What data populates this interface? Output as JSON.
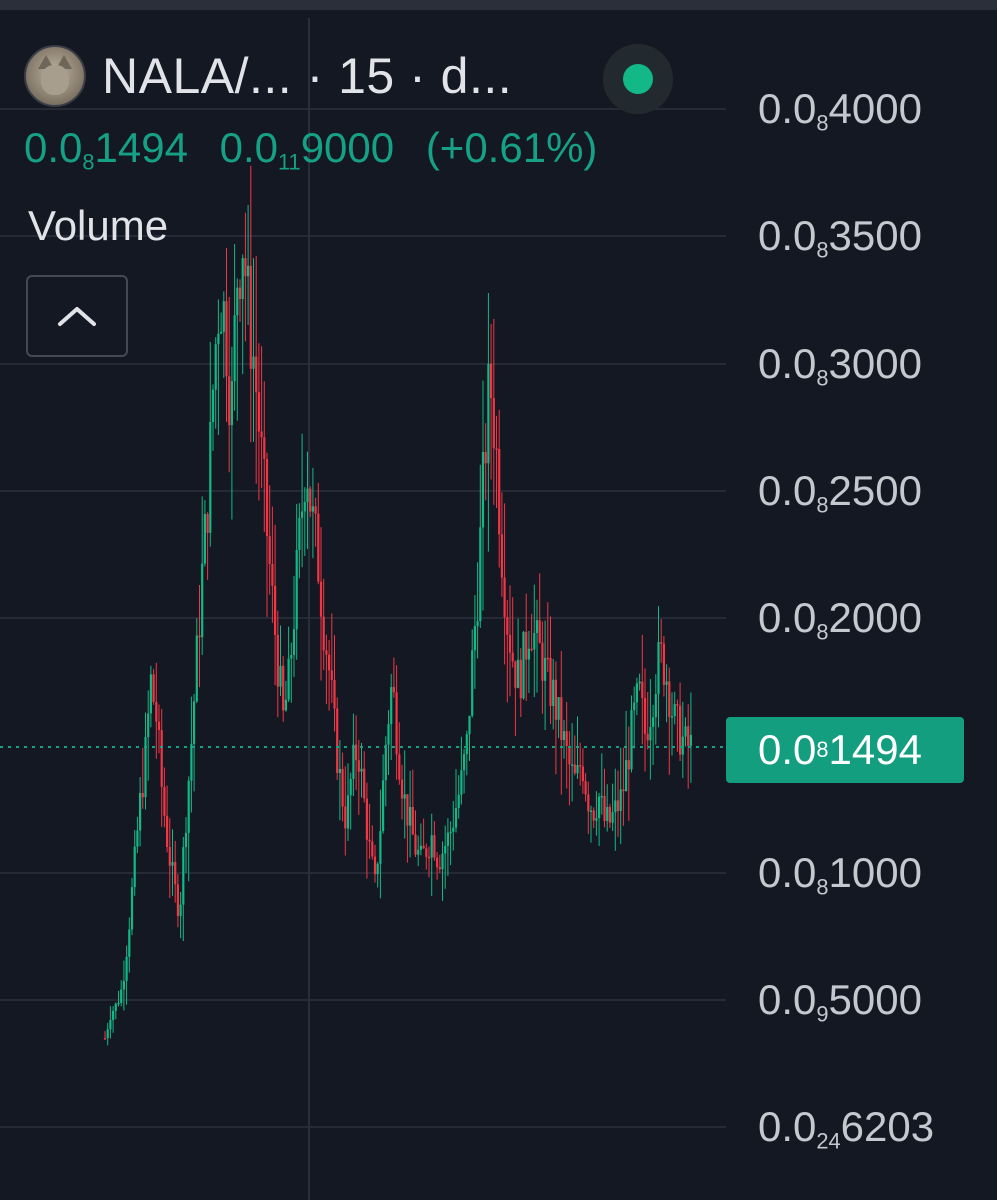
{
  "header": {
    "symbol": "NALA/... · 15 · d...",
    "live_status": "live",
    "price": {
      "base": "0.0",
      "zeros": "8",
      "digits": "1494"
    },
    "change": {
      "base": "0.0",
      "zeros": "11",
      "digits": "9000"
    },
    "change_pct": "(+0.61%)"
  },
  "indicators": {
    "volume_label": "Volume",
    "collapse_icon": "chevron-up-icon"
  },
  "colors": {
    "background": "#141822",
    "up": "#12b886",
    "down": "#f23645",
    "grid": "#262a36",
    "text": "#c5c8cf",
    "price_tag": "#129e7f"
  },
  "chart_data": {
    "type": "candlestick",
    "interval": "15",
    "last_price": 1.494e-09,
    "last_price_label": {
      "base": "0.0",
      "zeros": "8",
      "digits": "1494"
    },
    "y_axis": {
      "ticks": [
        {
          "value": 4e-09,
          "base": "0.0",
          "zeros": "8",
          "digits": "4000"
        },
        {
          "value": 3.5e-09,
          "base": "0.0",
          "zeros": "8",
          "digits": "3500"
        },
        {
          "value": 3e-09,
          "base": "0.0",
          "zeros": "8",
          "digits": "3000"
        },
        {
          "value": 2.5e-09,
          "base": "0.0",
          "zeros": "8",
          "digits": "2500"
        },
        {
          "value": 2e-09,
          "base": "0.0",
          "zeros": "8",
          "digits": "2000"
        },
        {
          "value": 1e-09,
          "base": "0.0",
          "zeros": "8",
          "digits": "1000"
        },
        {
          "value": 5e-10,
          "base": "0.0",
          "zeros": "9",
          "digits": "5000"
        },
        {
          "value": 6.203e-25,
          "base": "0.0",
          "zeros": "24",
          "digits": "6203"
        }
      ]
    },
    "path_prices_e9": [
      0.35,
      0.45,
      0.48,
      0.55,
      0.75,
      1.0,
      1.25,
      1.45,
      1.75,
      1.6,
      1.3,
      1.1,
      0.95,
      0.85,
      1.2,
      1.5,
      1.85,
      2.2,
      2.5,
      3.0,
      3.3,
      3.15,
      2.8,
      3.35,
      3.5,
      3.2,
      3.0,
      2.7,
      2.4,
      2.1,
      1.85,
      1.6,
      1.75,
      2.05,
      2.35,
      2.65,
      2.4,
      2.25,
      2.0,
      1.8,
      1.55,
      1.35,
      1.2,
      1.4,
      1.5,
      1.3,
      1.1,
      0.95,
      1.2,
      1.55,
      1.75,
      1.5,
      1.3,
      1.2,
      1.1,
      1.05,
      1.1,
      1.15,
      1.05,
      1.1,
      1.15,
      1.25,
      1.35,
      1.5,
      1.85,
      2.15,
      2.6,
      2.95,
      2.7,
      2.3,
      2.0,
      1.85,
      1.75,
      1.85,
      2.0,
      1.9,
      1.85,
      1.75,
      1.7,
      1.6,
      1.5,
      1.4,
      1.35,
      1.45,
      1.3,
      1.25,
      1.3,
      1.2,
      1.2,
      1.25,
      1.3,
      1.45,
      1.6,
      1.7,
      1.55,
      1.65,
      1.8,
      1.85,
      1.75,
      1.6,
      1.55,
      1.5,
      1.494
    ],
    "x_label": "",
    "y_label": ""
  }
}
